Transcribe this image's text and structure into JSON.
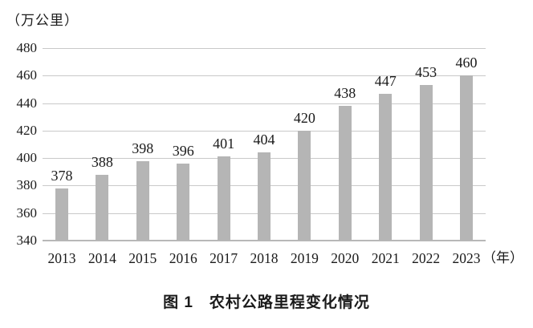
{
  "figure": {
    "y_axis_unit": "（万公里）",
    "x_axis_unit": "（年）",
    "caption": "图 1　农村公路里程变化情况"
  },
  "chart_data": {
    "type": "bar",
    "title": "图1 农村公路里程变化情况",
    "ylabel": "万公里",
    "xlabel": "年",
    "categories": [
      "2013",
      "2014",
      "2015",
      "2016",
      "2017",
      "2018",
      "2019",
      "2020",
      "2021",
      "2022",
      "2023"
    ],
    "values": [
      378,
      388,
      398,
      396,
      401,
      404,
      420,
      438,
      447,
      453,
      460
    ],
    "ylim": [
      340,
      480
    ],
    "yticks": [
      340,
      360,
      380,
      400,
      420,
      440,
      460,
      480
    ],
    "grid": true,
    "legend": false,
    "data_labels": true,
    "bar_color": "#b5b5b5",
    "gridline_color": "#c9c9c9",
    "text_color": "#1a1a1a",
    "background_color": "#ffffff"
  }
}
